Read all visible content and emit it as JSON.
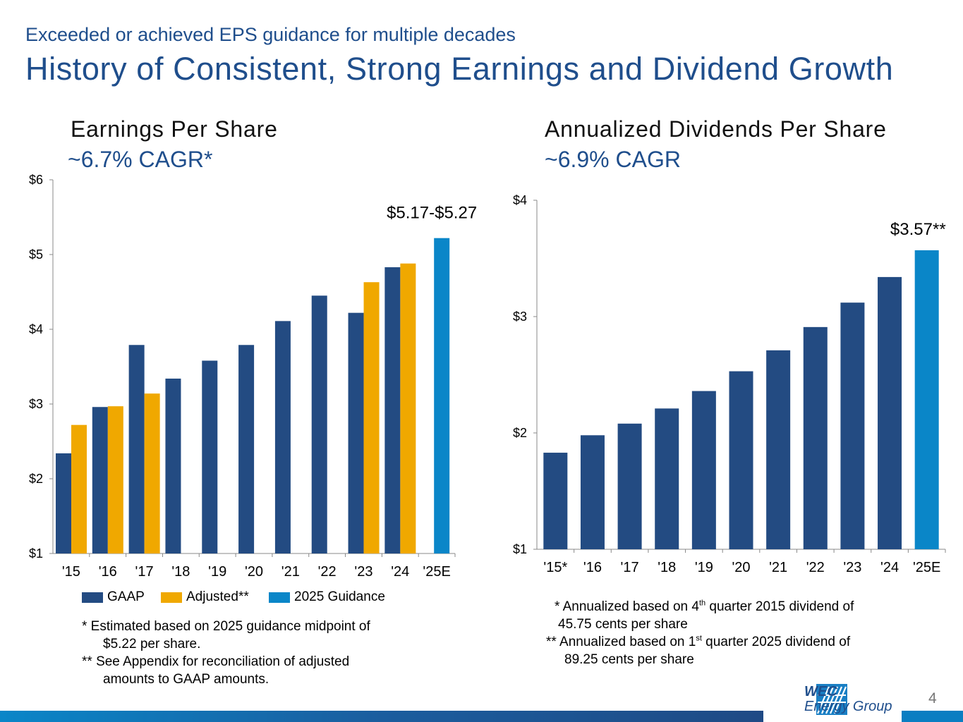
{
  "slide": {
    "subtitle": "Exceeded or achieved EPS guidance for multiple decades",
    "title": "History of Consistent, Strong Earnings and Dividend Growth",
    "page_number": "4",
    "logo": {
      "line1": "WEC",
      "line2": "Energy Group"
    },
    "colors": {
      "title": "#1f4e8c",
      "gaap": "#234b82",
      "adjusted": "#f0a800",
      "guidance": "#0a86c8"
    }
  },
  "chart_data": [
    {
      "type": "bar",
      "title": "Earnings Per Share",
      "subtitle": "~6.7% CAGR*",
      "categories": [
        "'15",
        "'16",
        "'17",
        "'18",
        "'19",
        "'20",
        "'21",
        "'22",
        "'23",
        "'24",
        "'25E"
      ],
      "series": [
        {
          "name": "GAAP",
          "color": "#234b82",
          "values": [
            2.34,
            2.96,
            3.79,
            3.34,
            3.58,
            3.79,
            4.11,
            4.45,
            4.22,
            4.83,
            null
          ]
        },
        {
          "name": "Adjusted**",
          "color": "#f0a800",
          "values": [
            2.72,
            2.97,
            3.14,
            null,
            null,
            null,
            null,
            null,
            4.63,
            4.88,
            null
          ]
        },
        {
          "name": "2025 Guidance",
          "color": "#0a86c8",
          "values": [
            null,
            null,
            null,
            null,
            null,
            null,
            null,
            null,
            null,
            null,
            5.22
          ]
        }
      ],
      "ylim": [
        1,
        6
      ],
      "yticks": [
        "$1",
        "$2",
        "$3",
        "$4",
        "$5",
        "$6"
      ],
      "annotation": "$5.17-$5.27",
      "legend_position": "bottom",
      "notes": [
        {
          "first": "* Estimated based on 2025 guidance midpoint of",
          "cont": "$5.22 per share."
        },
        {
          "first": "** See Appendix for reconciliation of adjusted",
          "cont": "amounts to GAAP amounts."
        }
      ]
    },
    {
      "type": "bar",
      "title": "Annualized Dividends Per Share",
      "subtitle": "~6.9% CAGR",
      "categories": [
        "'15*",
        "'16",
        "'17",
        "'18",
        "'19",
        "'20",
        "'21",
        "'22",
        "'23",
        "'24",
        "'25E"
      ],
      "series": [
        {
          "values": [
            1.83,
            1.98,
            2.08,
            2.21,
            2.36,
            2.53,
            2.71,
            2.91,
            3.12,
            3.34,
            3.57
          ],
          "colors": [
            "#234b82",
            "#234b82",
            "#234b82",
            "#234b82",
            "#234b82",
            "#234b82",
            "#234b82",
            "#234b82",
            "#234b82",
            "#234b82",
            "#0a86c8"
          ]
        }
      ],
      "ylim": [
        1,
        4
      ],
      "yticks": [
        "$1",
        "$2",
        "$3",
        "$4"
      ],
      "annotation": "$3.57**",
      "notes": [
        {
          "pre": "* Annualized based on 4",
          "sup": "th",
          "post": " quarter 2015 dividend of",
          "cont": "45.75 cents per share"
        },
        {
          "pre": "** Annualized based on 1",
          "sup": "st",
          "post": " quarter 2025 dividend of",
          "cont": "89.25 cents per share"
        }
      ]
    }
  ]
}
